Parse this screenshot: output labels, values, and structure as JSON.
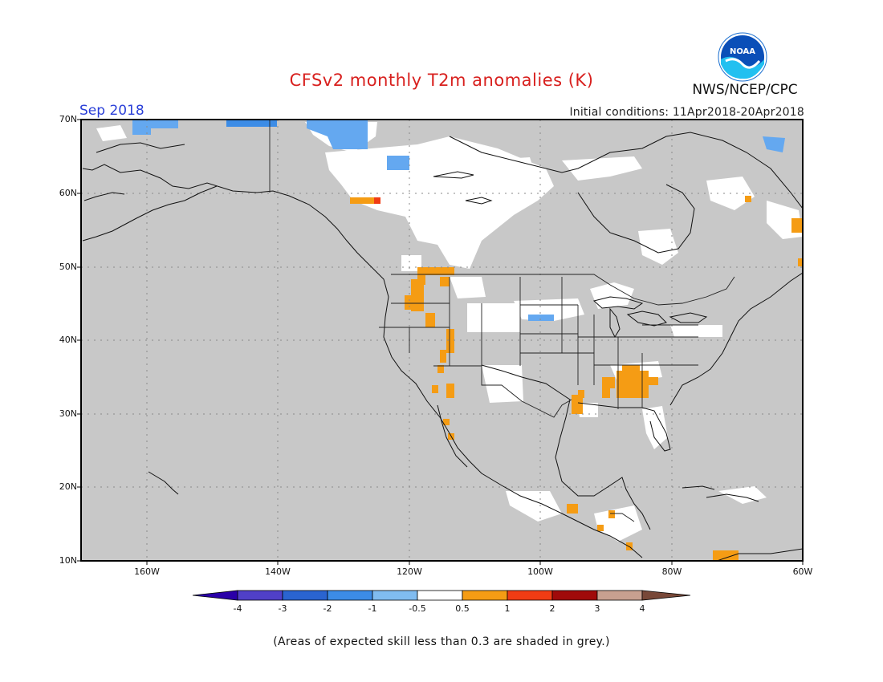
{
  "title": "CFSv2 monthly T2m anomalies (K)",
  "agency": "NWS/NCEP/CPC",
  "logo_text": "NOAA",
  "month": "Sep 2018",
  "initial_conditions": "Initial conditions: 11Apr2018-20Apr2018",
  "footnote": "(Areas of expected skill less than 0.3 are shaded in grey.)",
  "map": {
    "lon_range": [
      -170,
      -60
    ],
    "lat_range": [
      10,
      70
    ],
    "lat_labels": [
      "70N",
      "60N",
      "50N",
      "40N",
      "30N",
      "20N",
      "10N"
    ],
    "lon_labels": [
      "160W",
      "140W",
      "120W",
      "100W",
      "80W",
      "60W"
    ],
    "colors": {
      "low_skill_grey": "#c8c8c8",
      "neutral_white": "#ffffff",
      "cool_light": "#64a8f0",
      "cool_mid": "#3c8ce6",
      "warm_orange": "#f59c14",
      "warm_red": "#f03c14"
    }
  },
  "colorbar": {
    "labels": [
      "-4",
      "-3",
      "-2",
      "-1",
      "-0.5",
      "0.5",
      "1",
      "2",
      "3",
      "4"
    ],
    "colors": [
      "#2a00a8",
      "#5040c8",
      "#2a64d0",
      "#3c8ce6",
      "#80bcf0",
      "#ffffff",
      "#f59c14",
      "#f03c14",
      "#a00a0a",
      "#c8a090",
      "#784838"
    ]
  }
}
